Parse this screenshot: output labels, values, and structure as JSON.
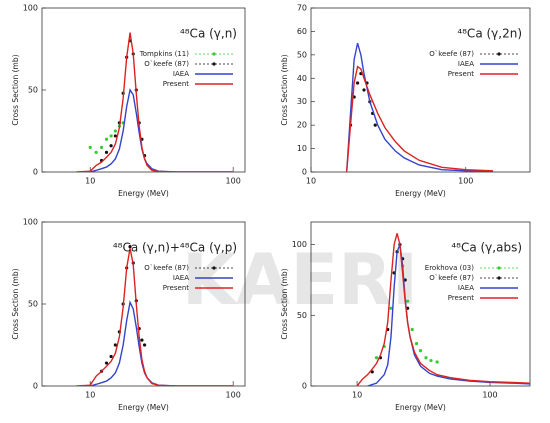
{
  "watermark": "KAERI",
  "chart_data": [
    {
      "type": "line",
      "title": "⁴⁸Ca (γ,n)",
      "x_label": "Energy (MeV)",
      "y_label": "Cross Section (mb)",
      "xscale": "log",
      "xlim": [
        4.6,
        121
      ],
      "xticks": [
        10,
        100
      ],
      "ylim": [
        0,
        100
      ],
      "yticks": [
        0,
        50,
        100
      ],
      "series": [
        {
          "name": "Tompkins (11)",
          "color": "#33cc33",
          "style": "points",
          "x": [
            10,
            11,
            12,
            13,
            14,
            15,
            16,
            17
          ],
          "values": [
            15,
            12,
            15,
            20,
            22,
            25,
            28,
            30
          ]
        },
        {
          "name": "O`keefe (87)",
          "color": "#111111",
          "style": "points",
          "x": [
            12,
            13,
            14,
            15,
            16,
            17,
            18,
            19,
            20,
            21,
            22,
            23,
            24
          ],
          "values": [
            7,
            12,
            16,
            22,
            30,
            48,
            70,
            80,
            72,
            50,
            30,
            20,
            10
          ]
        },
        {
          "name": "IAEA",
          "color": "#3344cc",
          "style": "line",
          "x": [
            10,
            11,
            12,
            13,
            14,
            15,
            16,
            17,
            18,
            19,
            20,
            21,
            22,
            23,
            24,
            25,
            27,
            30,
            40,
            100
          ],
          "values": [
            0,
            1,
            2,
            3,
            5,
            8,
            14,
            25,
            40,
            50,
            47,
            36,
            24,
            14,
            8,
            5,
            2,
            0.5,
            0,
            0
          ]
        },
        {
          "name": "Present",
          "color": "#dd2222",
          "style": "line",
          "x": [
            8,
            10,
            11,
            12,
            13,
            14,
            15,
            16,
            17,
            18,
            19,
            20,
            21,
            22,
            23,
            24,
            25,
            27,
            30,
            40,
            100
          ],
          "values": [
            0,
            0.5,
            4,
            6,
            9,
            12,
            17,
            27,
            45,
            70,
            85,
            72,
            48,
            28,
            15,
            8,
            4,
            1,
            0.3,
            0,
            0
          ]
        }
      ]
    },
    {
      "type": "line",
      "title": "⁴⁸Ca (γ,2n)",
      "x_label": "Energy (MeV)",
      "y_label": "Cross Section (mb)",
      "xscale": "log",
      "xlim": [
        10,
        260
      ],
      "xticks": [
        10,
        100
      ],
      "ylim": [
        0,
        70
      ],
      "yticks": [
        0,
        10,
        20,
        30,
        40,
        50,
        60,
        70
      ],
      "series": [
        {
          "name": "O`keefe (87)",
          "color": "#111111",
          "style": "points",
          "x": [
            18,
            19,
            20,
            21,
            22,
            23,
            24,
            25,
            26
          ],
          "values": [
            20,
            32,
            38,
            42,
            35,
            38,
            30,
            25,
            20
          ]
        },
        {
          "name": "IAEA",
          "color": "#3344cc",
          "style": "line",
          "x": [
            17,
            18,
            19,
            20,
            21,
            22,
            24,
            27,
            30,
            35,
            40,
            50,
            70,
            100,
            150
          ],
          "values": [
            0,
            25,
            48,
            55,
            50,
            42,
            30,
            20,
            14,
            9,
            6,
            3,
            1,
            0.5,
            0.2
          ]
        },
        {
          "name": "Present",
          "color": "#dd2222",
          "style": "line",
          "x": [
            17,
            18,
            19,
            20,
            21,
            22,
            24,
            27,
            30,
            35,
            40,
            50,
            70,
            100,
            150
          ],
          "values": [
            0,
            20,
            38,
            45,
            44,
            40,
            33,
            25,
            19,
            13,
            9,
            5,
            2,
            1,
            0.5
          ]
        }
      ]
    },
    {
      "type": "line",
      "title": "⁴⁸Ca (γ,n)+⁴⁸Ca (γ,p)",
      "x_label": "Energy (MeV)",
      "y_label": "Cross Section (mb)",
      "xscale": "log",
      "xlim": [
        4.6,
        121
      ],
      "xticks": [
        10,
        100
      ],
      "ylim": [
        0,
        100
      ],
      "yticks": [
        0,
        50,
        100
      ],
      "series": [
        {
          "name": "O`keefe (87)",
          "color": "#111111",
          "style": "points",
          "x": [
            12,
            13,
            14,
            15,
            16,
            17,
            18,
            19,
            20,
            21,
            22,
            23,
            24
          ],
          "values": [
            9,
            14,
            18,
            25,
            33,
            50,
            72,
            85,
            75,
            52,
            35,
            28,
            25
          ]
        },
        {
          "name": "IAEA",
          "color": "#3344cc",
          "style": "line",
          "x": [
            10,
            11,
            12,
            13,
            14,
            15,
            16,
            17,
            18,
            19,
            20,
            21,
            22,
            23,
            24,
            25,
            27,
            30,
            40,
            100
          ],
          "values": [
            0,
            1,
            2,
            3,
            5,
            8,
            14,
            25,
            40,
            51,
            47,
            36,
            24,
            14,
            8,
            5,
            2,
            0.5,
            0,
            0
          ]
        },
        {
          "name": "Present",
          "color": "#dd2222",
          "style": "line",
          "x": [
            8,
            10,
            11,
            12,
            13,
            14,
            15,
            16,
            17,
            18,
            19,
            20,
            21,
            22,
            23,
            24,
            25,
            27,
            30,
            40,
            100
          ],
          "values": [
            0,
            0.5,
            6,
            9,
            12,
            15,
            20,
            30,
            48,
            72,
            84,
            74,
            50,
            30,
            16,
            9,
            5,
            1.5,
            0.4,
            0,
            0
          ]
        }
      ]
    },
    {
      "type": "line",
      "title": "⁴⁸Ca (γ,abs)",
      "x_label": "Energy (MeV)",
      "y_label": "Cross Section (mb)",
      "xscale": "log",
      "xlim": [
        4.5,
        200
      ],
      "xticks": [
        10,
        100
      ],
      "ylim": [
        0,
        116
      ],
      "yticks": [
        0,
        50,
        100
      ],
      "series": [
        {
          "name": "Erokhova (03)",
          "color": "#33cc33",
          "style": "points",
          "x": [
            14,
            16,
            18,
            20,
            22,
            24,
            26,
            28,
            30,
            33,
            36,
            40
          ],
          "values": [
            20,
            28,
            55,
            95,
            85,
            60,
            40,
            30,
            25,
            20,
            18,
            17
          ]
        },
        {
          "name": "O`keefe (87)",
          "color": "#111111",
          "style": "points",
          "x": [
            13,
            15,
            17,
            19,
            20,
            21,
            22,
            23,
            24
          ],
          "values": [
            10,
            20,
            40,
            80,
            95,
            100,
            90,
            75,
            55
          ]
        },
        {
          "name": "IAEA",
          "color": "#3344cc",
          "style": "line",
          "x": [
            12,
            14,
            16,
            17,
            18,
            19,
            20,
            21,
            22,
            23,
            24,
            25,
            27,
            30,
            35,
            40,
            50,
            70,
            100,
            150,
            200
          ],
          "values": [
            0,
            2,
            8,
            15,
            35,
            70,
            95,
            100,
            85,
            62,
            45,
            35,
            22,
            14,
            9,
            7,
            5,
            3.5,
            2.5,
            2,
            1.5
          ]
        },
        {
          "name": "Present",
          "color": "#dd2222",
          "style": "line",
          "x": [
            10,
            11,
            12,
            13,
            14,
            15,
            16,
            17,
            18,
            19,
            20,
            21,
            22,
            23,
            24,
            25,
            27,
            30,
            35,
            40,
            50,
            70,
            100,
            150,
            200
          ],
          "values": [
            0,
            5,
            8,
            12,
            16,
            22,
            30,
            45,
            75,
            100,
            108,
            100,
            80,
            60,
            45,
            35,
            24,
            16,
            11,
            8,
            6,
            4,
            3,
            2.5,
            2
          ]
        }
      ]
    }
  ]
}
